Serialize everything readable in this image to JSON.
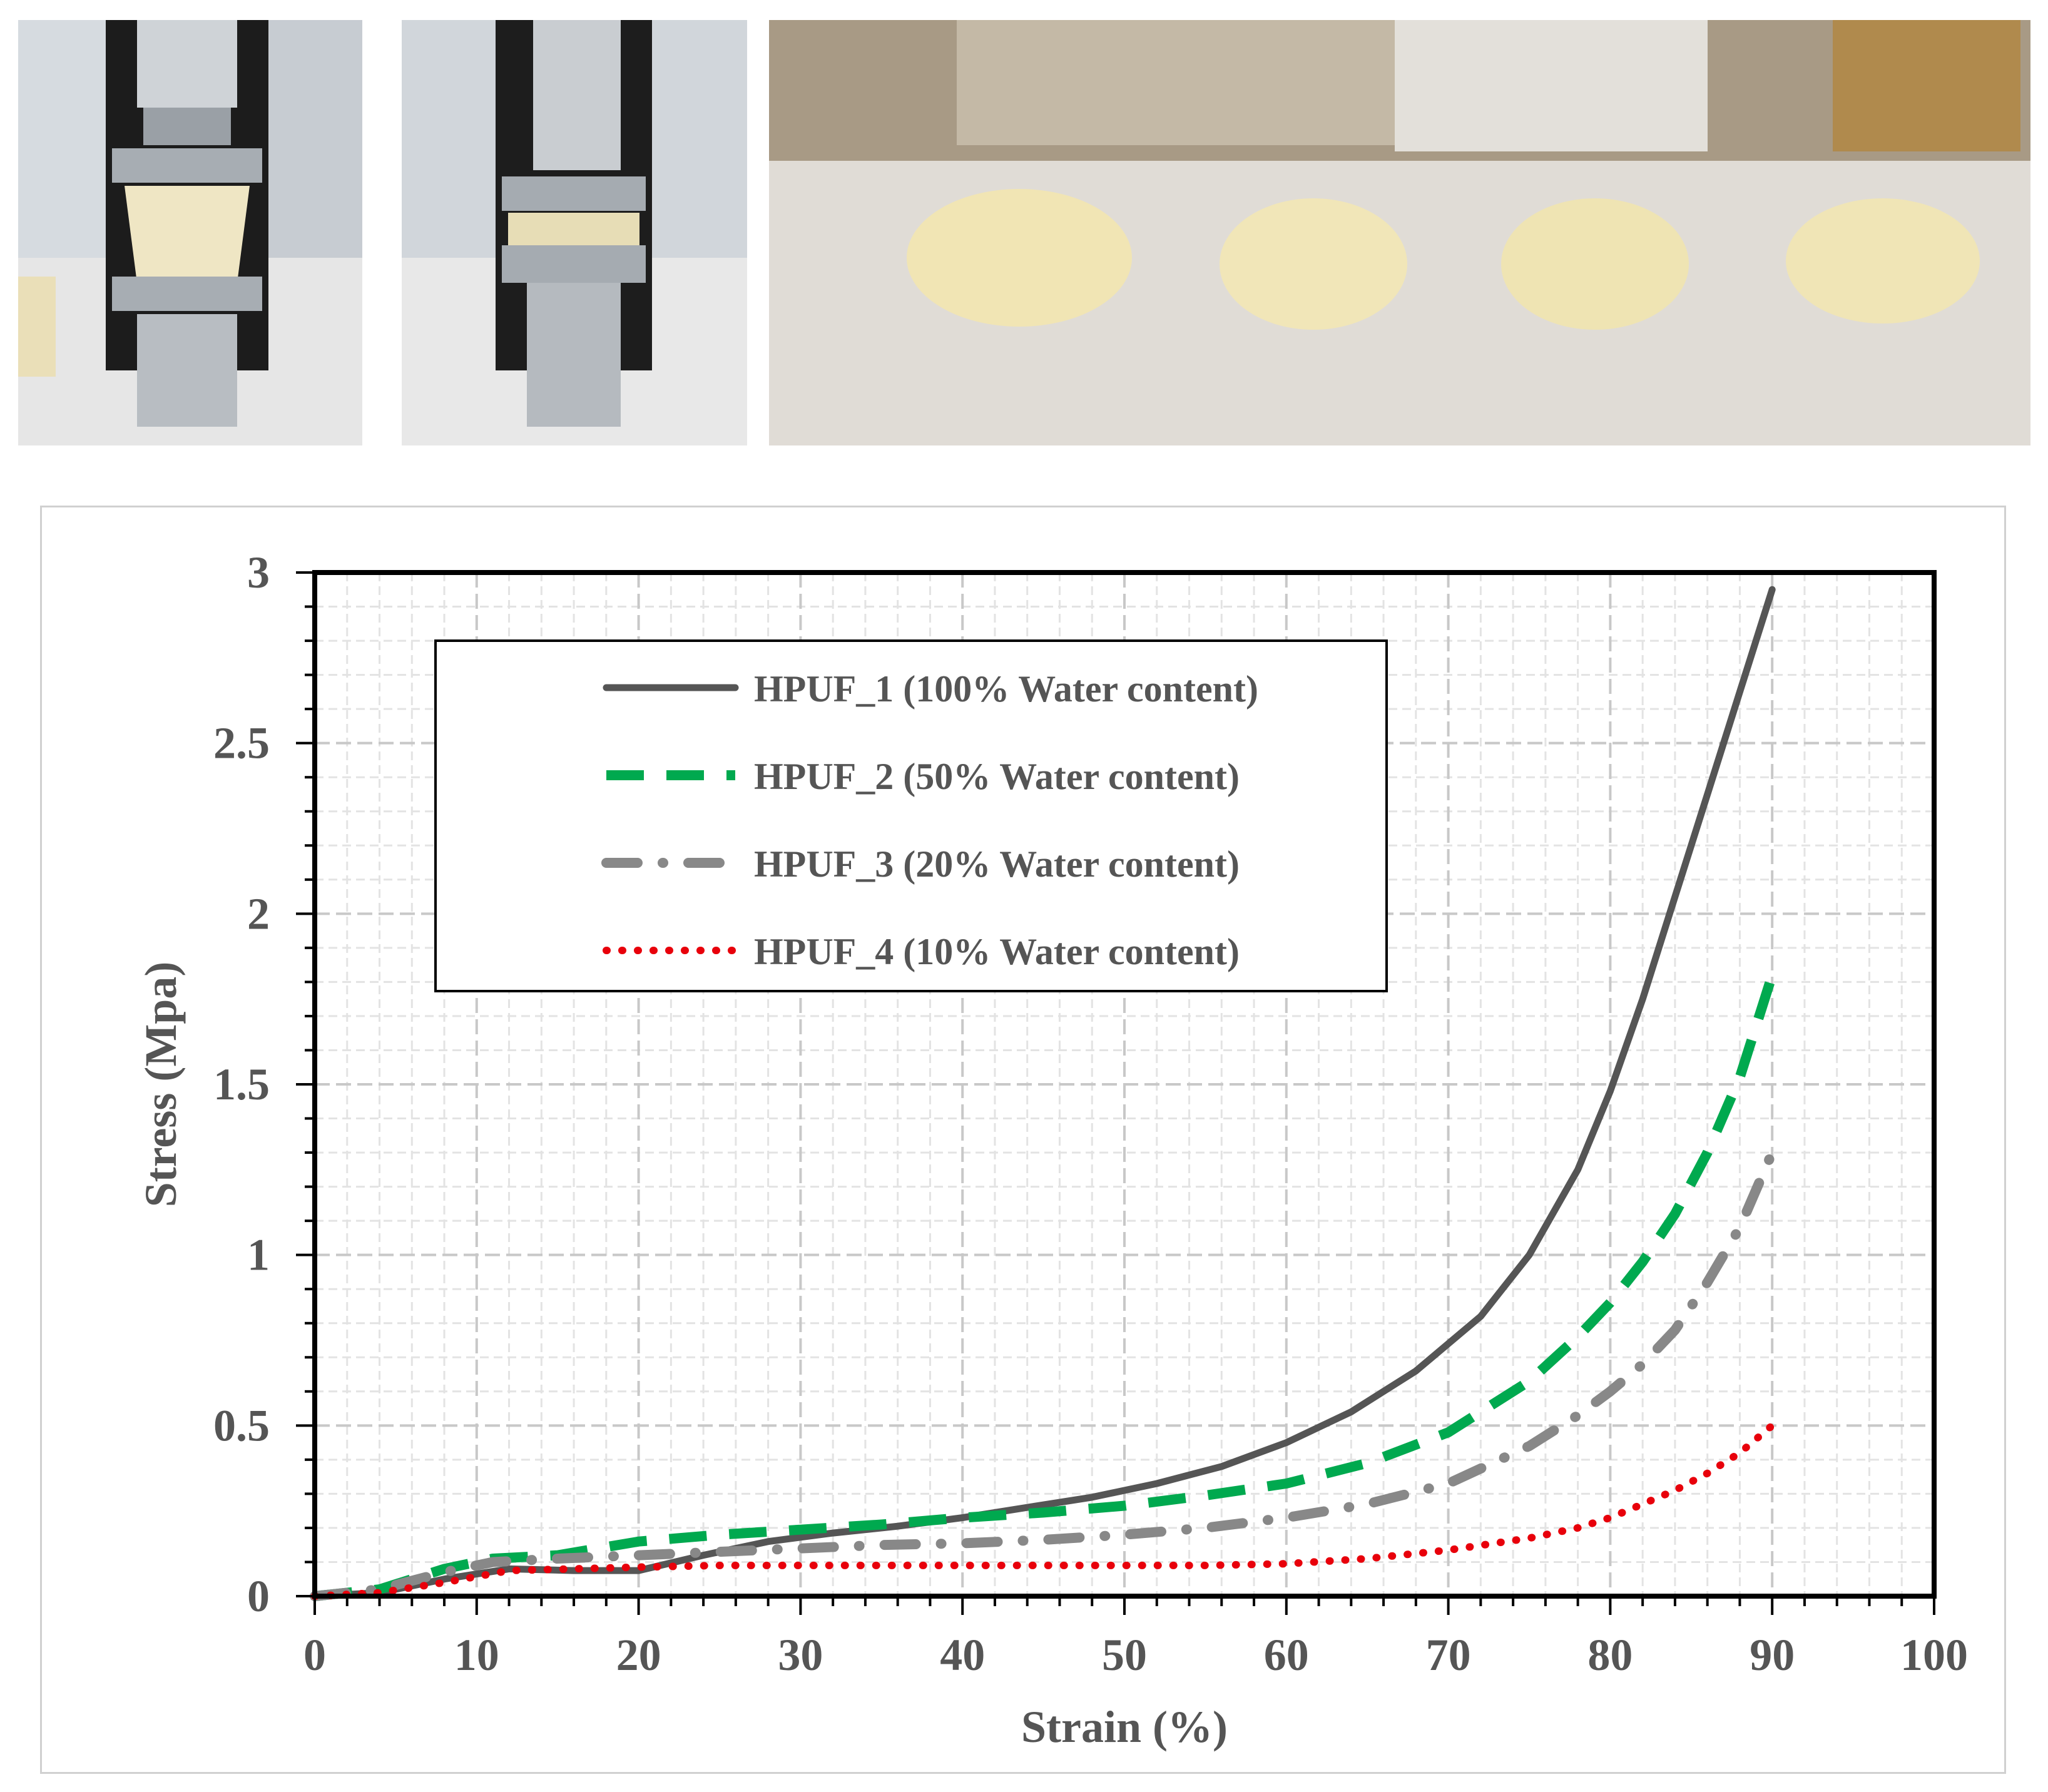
{
  "photos": [
    {
      "name": "compression-test-before-photo"
    },
    {
      "name": "compression-test-after-photo"
    },
    {
      "name": "compressed-samples-photo"
    }
  ],
  "colors": {
    "hpuf_1": "#555555",
    "hpuf_2": "#00a94f",
    "hpuf_3": "#888888",
    "hpuf_4": "#e8000b",
    "grid": "#c8c8c8",
    "axis": "#000000",
    "text": "#555555"
  },
  "chart_data": {
    "type": "line",
    "title": "",
    "xlabel": "Strain (%)",
    "ylabel": "Stress (Mpa)",
    "xlim": [
      0,
      100
    ],
    "ylim": [
      0,
      3
    ],
    "xticks": [
      "0",
      "10",
      "20",
      "30",
      "40",
      "50",
      "60",
      "70",
      "80",
      "90",
      "100"
    ],
    "yticks": [
      "0",
      "0.5",
      "1",
      "1.5",
      "2",
      "2.5",
      "3"
    ],
    "grid": "major and minor, dashed",
    "legend_position": "top-left",
    "series": [
      {
        "name": "HPUF_1 (100% Water content)",
        "style": "solid",
        "x": [
          0,
          4,
          8,
          12,
          16,
          20,
          24,
          28,
          32,
          36,
          40,
          44,
          48,
          52,
          56,
          60,
          64,
          68,
          72,
          75,
          78,
          80,
          82,
          84,
          86,
          88,
          90
        ],
        "y": [
          0,
          0.01,
          0.05,
          0.08,
          0.075,
          0.075,
          0.12,
          0.16,
          0.185,
          0.205,
          0.23,
          0.26,
          0.29,
          0.33,
          0.38,
          0.45,
          0.54,
          0.66,
          0.82,
          1.0,
          1.25,
          1.48,
          1.75,
          2.05,
          2.35,
          2.65,
          2.95
        ]
      },
      {
        "name": "HPUF_2 (50% Water content)",
        "style": "dashed",
        "x": [
          0,
          4,
          8,
          11,
          15,
          20,
          25,
          30,
          35,
          40,
          45,
          50,
          55,
          60,
          65,
          70,
          75,
          78,
          80,
          82,
          84,
          86,
          88,
          90
        ],
        "y": [
          0,
          0.02,
          0.08,
          0.11,
          0.12,
          0.16,
          0.18,
          0.195,
          0.21,
          0.23,
          0.245,
          0.265,
          0.295,
          0.33,
          0.39,
          0.48,
          0.63,
          0.76,
          0.86,
          0.98,
          1.12,
          1.3,
          1.52,
          1.82
        ]
      },
      {
        "name": "HPUF_3 (20% Water content)",
        "style": "dash-dot",
        "x": [
          0,
          4,
          8,
          11,
          15,
          20,
          25,
          30,
          35,
          40,
          45,
          50,
          55,
          60,
          65,
          70,
          75,
          78,
          80,
          82,
          84,
          86,
          88,
          90
        ],
        "y": [
          0,
          0.02,
          0.07,
          0.1,
          0.11,
          0.12,
          0.13,
          0.14,
          0.15,
          0.155,
          0.165,
          0.18,
          0.2,
          0.23,
          0.27,
          0.33,
          0.44,
          0.53,
          0.6,
          0.68,
          0.78,
          0.92,
          1.08,
          1.3
        ]
      },
      {
        "name": "HPUF_4 (10% Water content)",
        "style": "dotted",
        "x": [
          0,
          4,
          8,
          12,
          16,
          20,
          25,
          30,
          35,
          40,
          45,
          50,
          55,
          60,
          65,
          70,
          75,
          78,
          80,
          82,
          84,
          86,
          88,
          90
        ],
        "y": [
          0,
          0.01,
          0.04,
          0.075,
          0.08,
          0.085,
          0.09,
          0.09,
          0.09,
          0.09,
          0.09,
          0.09,
          0.09,
          0.095,
          0.11,
          0.135,
          0.17,
          0.2,
          0.23,
          0.27,
          0.31,
          0.36,
          0.42,
          0.5
        ]
      }
    ]
  }
}
